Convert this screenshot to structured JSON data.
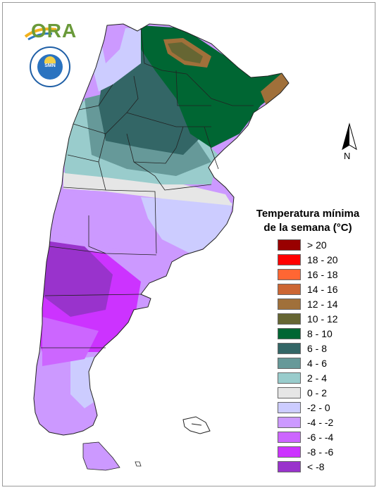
{
  "logo": {
    "ora_text": "ORA",
    "seal_text": "SMN"
  },
  "north_arrow": {
    "label": "N"
  },
  "legend": {
    "title_line1": "Temperatura mínima",
    "title_line2": "de la semana (°C)",
    "items": [
      {
        "label": "> 20",
        "color": "#990000"
      },
      {
        "label": "18 - 20",
        "color": "#ff0000"
      },
      {
        "label": "16 - 18",
        "color": "#ff6633"
      },
      {
        "label": "14 - 16",
        "color": "#cc6633"
      },
      {
        "label": "12 - 14",
        "color": "#a0703a"
      },
      {
        "label": "10 - 12",
        "color": "#666633"
      },
      {
        "label": "8 - 10",
        "color": "#006633"
      },
      {
        "label": "6 - 8",
        "color": "#336666"
      },
      {
        "label": "4 - 6",
        "color": "#669999"
      },
      {
        "label": "2 - 4",
        "color": "#99cccc"
      },
      {
        "label": "0 - 2",
        "color": "#e6e6e6"
      },
      {
        "label": "-2 - 0",
        "color": "#ccccff"
      },
      {
        "label": "-4 - -2",
        "color": "#cc99ff"
      },
      {
        "label": "-6 - -4",
        "color": "#cc66ff"
      },
      {
        "label": "-8 - -6",
        "color": "#cc33ff"
      },
      {
        "label": "< -8",
        "color": "#9933cc"
      }
    ]
  }
}
